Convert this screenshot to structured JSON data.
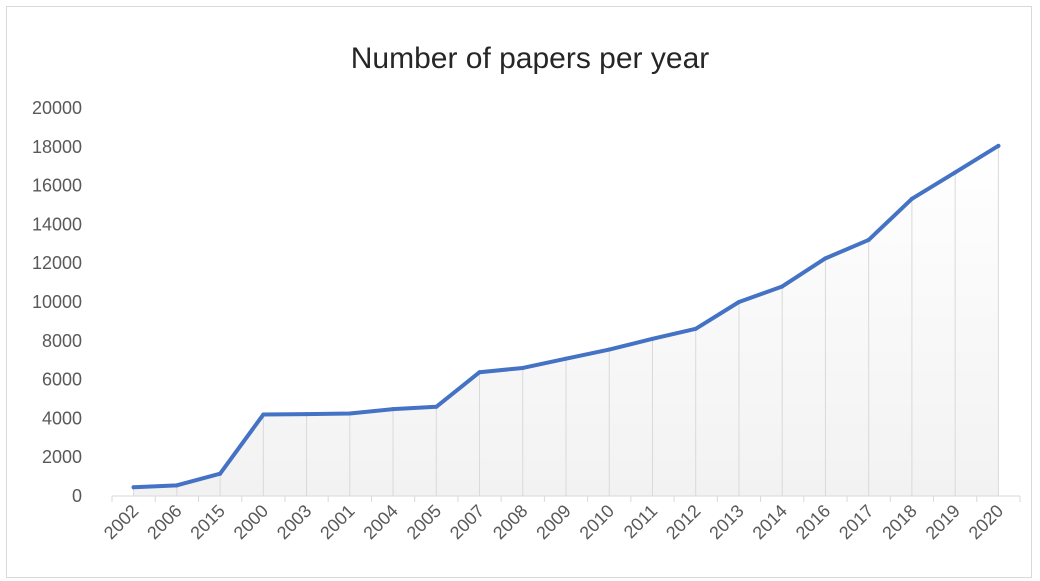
{
  "chart_data": {
    "type": "area",
    "title": "Number of papers per year",
    "xlabel": "",
    "ylabel": "",
    "categories": [
      "2002",
      "2006",
      "2015",
      "2000",
      "2003",
      "2001",
      "2004",
      "2005",
      "2007",
      "2008",
      "2009",
      "2010",
      "2011",
      "2012",
      "2013",
      "2014",
      "2016",
      "2017",
      "2018",
      "2019",
      "2020"
    ],
    "series": [
      {
        "values": [
          450,
          550,
          1150,
          4200,
          4220,
          4250,
          4480,
          4600,
          6380,
          6600,
          7080,
          7550,
          8100,
          8620,
          10000,
          10800,
          12250,
          13200,
          15320,
          16680,
          18050
        ],
        "color": "#4472c4"
      }
    ],
    "ylim": [
      0,
      20000
    ],
    "yticks": [
      0,
      2000,
      4000,
      6000,
      8000,
      10000,
      12000,
      14000,
      16000,
      18000,
      20000
    ],
    "grid": false,
    "legend": "none",
    "fill_gradient": [
      "#ffffff",
      "#f2f2f2"
    ],
    "drop_line_color": "#d9d9d9",
    "axis_color": "#d9d9d9"
  }
}
